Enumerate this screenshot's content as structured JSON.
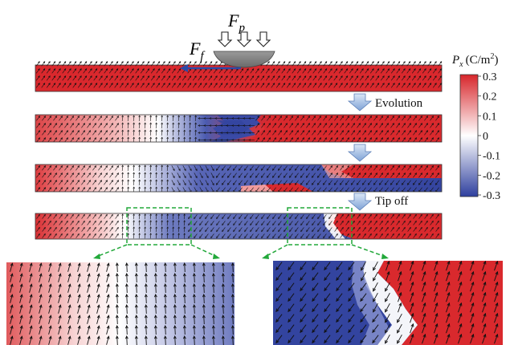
{
  "forces": {
    "pressure": {
      "symbol": "F",
      "subscript": "p"
    },
    "friction": {
      "symbol": "F",
      "subscript": "f"
    }
  },
  "steps": {
    "evolution": "Evolution",
    "tip_off": "Tip off"
  },
  "colorbar": {
    "title_symbol": "P",
    "title_subscript": "x",
    "title_unit": "(C/m",
    "title_unit_sup": "2",
    "title_unit_end": ")",
    "ticks": [
      "0.3",
      "0.2",
      "0.1",
      "0",
      "-0.1",
      "-0.2",
      "-0.3"
    ],
    "max": 0.3,
    "min": -0.3,
    "colors": {
      "positive": "#d7262b",
      "zero": "#ffffff",
      "negative": "#2e3f9e"
    }
  },
  "colors": {
    "arrow": "#111111",
    "force_arrow": "#2c4aa6",
    "zoom_guide": "#22a83a",
    "step_arrow": "#8fb0dd",
    "tip": "#8a8a8a"
  }
}
